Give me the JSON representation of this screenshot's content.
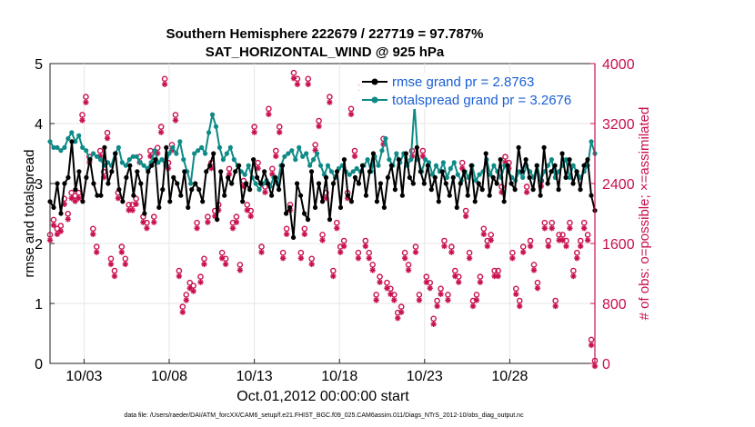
{
  "chart_data": {
    "type": "line",
    "title_line1": "Southern Hemisphere 222679 / 227719 = 97.787%",
    "title_line2": "SAT_HORIZONTAL_WIND @ 925 hPa",
    "ylabel_left": "rmse and totalspread",
    "ylabel_right": "# of obs: o=possible; ×=assimilated",
    "xlabel": "Oct.01,2012 00:00:00 start",
    "footer": "data file: /Users/raeder/DAI/ATM_forcXX/CAM6_setup/f.e21.FHIST_BGC.f09_025.CAM6assim.011/Diags_NTrS_2012-10/obs_diag_output.nc",
    "ylim_left": [
      0,
      5
    ],
    "ylim_right": [
      0,
      4000
    ],
    "xlim": [
      1,
      33
    ],
    "yticks_left": [
      "0",
      "1",
      "2",
      "3",
      "4",
      "5"
    ],
    "yticks_right": [
      "0",
      "800",
      "1600",
      "2400",
      "3200",
      "4000"
    ],
    "xticks": [
      {
        "day": 3,
        "label": "10/03"
      },
      {
        "day": 8,
        "label": "10/08"
      },
      {
        "day": 13,
        "label": "10/13"
      },
      {
        "day": 18,
        "label": "10/18"
      },
      {
        "day": 23,
        "label": "10/23"
      },
      {
        "day": 28,
        "label": "10/28"
      }
    ],
    "colors": {
      "rmse": "#000000",
      "spread": "#0e8a87",
      "obs": "#c9104f",
      "legend_text": "#1a5fd6"
    },
    "series": [
      {
        "name": "rmse grand pr = 2.8763",
        "values": [
          2.7,
          2.6,
          3.0,
          2.5,
          3.0,
          3.1,
          3.7,
          2.9,
          3.2,
          2.7,
          3.1,
          3.4,
          3.0,
          2.8,
          2.8,
          3.6,
          3.0,
          3.2,
          3.5,
          2.9,
          2.7,
          3.1,
          3.3,
          2.8,
          3.2,
          3.0,
          2.5,
          3.2,
          3.3,
          3.4,
          2.6,
          2.9,
          3.6,
          2.7,
          3.1,
          3.0,
          2.8,
          3.2,
          2.6,
          2.9,
          3.0,
          2.9,
          2.7,
          3.2,
          3.3,
          3.5,
          2.4,
          3.2,
          2.8,
          3.1,
          3.0,
          3.2,
          3.3,
          2.7,
          3.0,
          2.9,
          3.4,
          3.1,
          3.0,
          3.2,
          3.0,
          2.8,
          3.1,
          2.9,
          3.3,
          2.5,
          2.6,
          2.1,
          3.0,
          2.8,
          2.5,
          2.4,
          3.2,
          2.6,
          3.0,
          2.7,
          3.1,
          2.4,
          3.0,
          3.2,
          2.6,
          3.4,
          2.8,
          2.7,
          3.1,
          3.0,
          3.3,
          2.8,
          3.2,
          3.5,
          2.7,
          3.0,
          2.6,
          3.1,
          3.3,
          2.9,
          3.4,
          2.8,
          3.5,
          3.1,
          3.0,
          3.6,
          3.2,
          3.0,
          3.3,
          2.9,
          3.1,
          2.7,
          3.2,
          3.0,
          2.8,
          3.1,
          2.6,
          3.0,
          3.2,
          2.8,
          3.3,
          2.7,
          3.0,
          2.9,
          3.5,
          2.8,
          3.1,
          3.0,
          3.4,
          2.7,
          3.3,
          3.0,
          2.9,
          3.6,
          3.2,
          3.4,
          3.1,
          2.9,
          3.3,
          2.8,
          3.6,
          3.0,
          3.2,
          3.3,
          2.9,
          3.5,
          3.1,
          3.4,
          3.0,
          3.2,
          2.9,
          3.3,
          3.4,
          2.8,
          2.55
        ]
      },
      {
        "name": "totalspread grand pr = 3.2676",
        "values": [
          3.7,
          3.6,
          3.6,
          3.55,
          3.6,
          3.75,
          3.85,
          3.7,
          3.8,
          3.6,
          3.55,
          3.4,
          3.5,
          3.45,
          3.4,
          3.3,
          3.35,
          3.3,
          3.5,
          3.6,
          3.35,
          3.3,
          3.4,
          3.45,
          3.45,
          3.35,
          3.3,
          3.25,
          3.35,
          3.55,
          3.35,
          3.4,
          3.3,
          3.5,
          3.6,
          3.5,
          3.7,
          3.4,
          3.2,
          3.0,
          3.5,
          3.55,
          3.6,
          3.5,
          3.85,
          4.15,
          3.95,
          3.6,
          3.4,
          3.5,
          3.6,
          3.4,
          3.3,
          3.2,
          3.15,
          3.3,
          3.1,
          3.0,
          2.9,
          3.0,
          3.05,
          2.95,
          3.1,
          3.0,
          3.3,
          3.45,
          3.5,
          3.55,
          3.4,
          3.6,
          3.45,
          3.5,
          3.3,
          3.4,
          3.5,
          3.3,
          3.15,
          3.3,
          3.2,
          3.1,
          3.25,
          3.3,
          3.2,
          3.15,
          3.2,
          3.25,
          3.2,
          3.3,
          3.4,
          3.2,
          3.45,
          3.3,
          3.55,
          3.75,
          3.4,
          3.3,
          3.5,
          3.35,
          3.5,
          3.3,
          3.4,
          4.3,
          3.4,
          3.2,
          3.4,
          3.35,
          3.15,
          3.3,
          3.2,
          3.35,
          3.1,
          3.25,
          3.35,
          3.15,
          3.05,
          3.2,
          3.1,
          3.3,
          3.05,
          3.15,
          3.2,
          3.4,
          3.15,
          3.3,
          3.2,
          3.1,
          3.3,
          3.2,
          3.1,
          3.05,
          3.2,
          3.1,
          3.3,
          3.2,
          3.1,
          3.3,
          3.05,
          3.2,
          3.3,
          3.4,
          3.1,
          3.2,
          3.3,
          3.4,
          3.1,
          3.3,
          3.2,
          3.1,
          3.2,
          3.3,
          3.7,
          3.5
        ]
      },
      {
        "name": "obs possible (o)",
        "values": [
          1680,
          1880,
          1760,
          1800,
          2160,
          1960,
          2240,
          2200,
          2240,
          3280,
          3520,
          2720,
          1760,
          1520,
          2800,
          2520,
          3040,
          1360,
          1200,
          2240,
          1520,
          1360,
          2080,
          2080,
          2160,
          2720,
          1920,
          1840,
          2800,
          1920,
          2840,
          3120,
          3760,
          2640,
          2880,
          3280,
          1200,
          720,
          880,
          1040,
          1000,
          1840,
          1120,
          1360,
          1920,
          2640,
          2000,
          2080,
          1440,
          1360,
          2560,
          1840,
          1920,
          1280,
          2400,
          2080,
          2000,
          3120,
          2640,
          1520,
          2320,
          3360,
          2560,
          2800,
          3120,
          1440,
          1760,
          2080,
          3840,
          3760,
          1440,
          1760,
          3760,
          1360,
          2880,
          3200,
          1680,
          2240,
          3520,
          1200,
          1840,
          1520,
          1600,
          2240,
          3360,
          2800,
          1440,
          3680,
          1600,
          1440,
          1280,
          880,
          1120,
          2960,
          1040,
          960,
          880,
          640,
          720,
          1440,
          1280,
          2800,
          1520,
          880,
          2800,
          1120,
          1040,
          560,
          800,
          960,
          1600,
          880,
          1520,
          1200,
          1120,
          2640,
          2000,
          1440,
          800,
          880,
          1120,
          1760,
          1600,
          1680,
          1200,
          1200,
          2320,
          2720,
          2640,
          1440,
          960,
          800,
          1520,
          2320,
          1600,
          1280,
          1040,
          2400,
          1840,
          1600,
          1840,
          800,
          1680,
          1680,
          1600,
          1840,
          1200,
          1440,
          1600,
          1840,
          1680,
          280,
          0
        ]
      }
    ]
  }
}
